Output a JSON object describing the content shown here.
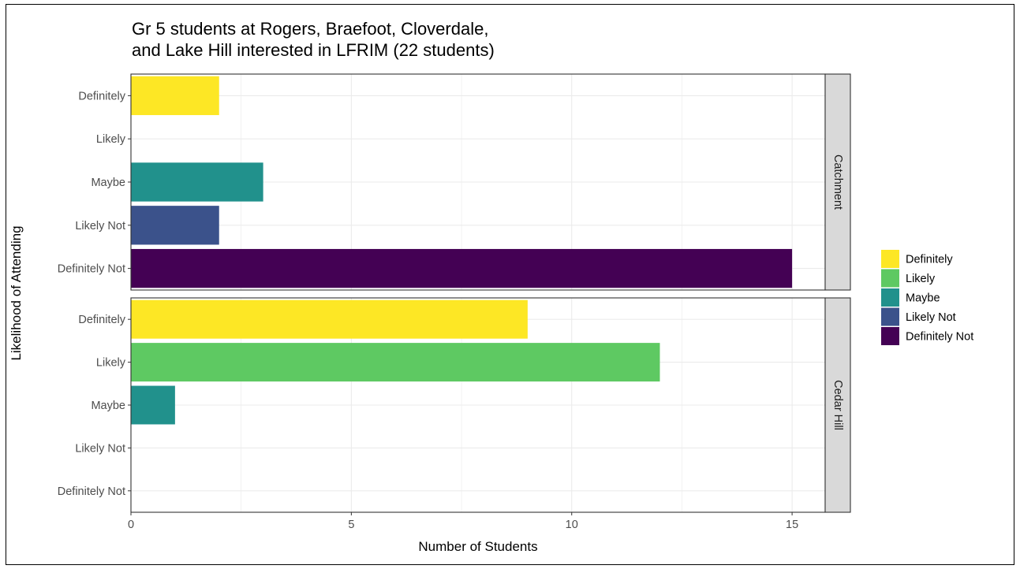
{
  "chart_data": {
    "type": "bar",
    "orientation": "horizontal",
    "title": "Gr 5 students at Rogers, Braefoot, Cloverdale, and Lake Hill interested in LFRIM (22 students)",
    "title_lines": [
      "Gr 5 students at Rogers, Braefoot, Cloverdale,",
      "and Lake Hill interested in LFRIM (22 students)"
    ],
    "xlabel": "Number of Students",
    "ylabel": "Likelihood of Attending",
    "xlim": [
      0,
      15.75
    ],
    "x_ticks": [
      0,
      5,
      10,
      15
    ],
    "grid": true,
    "categories": [
      "Definitely",
      "Likely",
      "Maybe",
      "Likely Not",
      "Definitely Not"
    ],
    "panels": [
      {
        "name": "Catchment",
        "values": [
          2,
          0,
          3,
          2,
          15
        ]
      },
      {
        "name": "Cedar Hill",
        "values": [
          9,
          12,
          1,
          0,
          0
        ]
      }
    ],
    "legend": {
      "position": "right",
      "entries": [
        "Definitely",
        "Likely",
        "Maybe",
        "Likely Not",
        "Definitely Not"
      ]
    },
    "colors": {
      "Definitely": "#fde725",
      "Likely": "#5ec962",
      "Maybe": "#21918c",
      "Likely Not": "#3b528b",
      "Definitely Not": "#440154"
    }
  }
}
